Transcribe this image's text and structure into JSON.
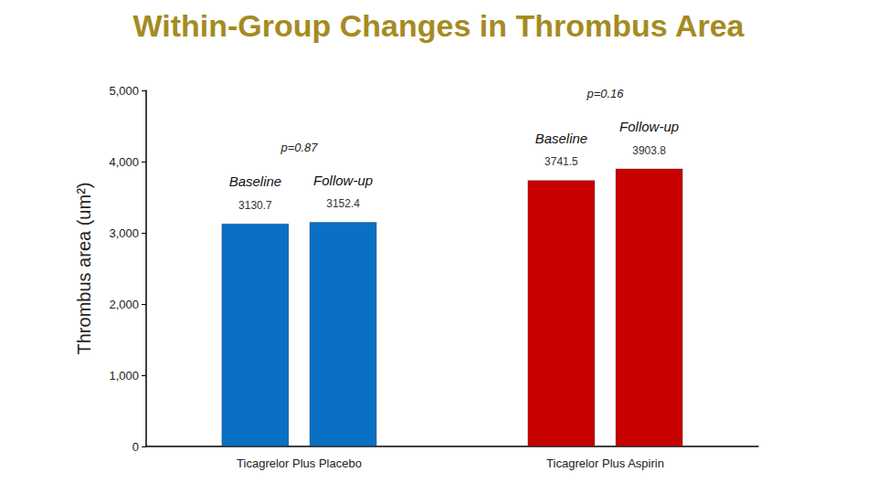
{
  "chart_data": {
    "type": "bar",
    "title": "Within-Group Changes in Thrombus Area",
    "y_label": "Thrombus area (um²)",
    "categories": [
      "Ticagrelor Plus Placebo",
      "Ticagrelor Plus Aspirin"
    ],
    "series": [
      {
        "name": "Baseline",
        "values": [
          3130.7,
          3741.5
        ],
        "colors": [
          "#0a70c4",
          "#c80000"
        ]
      },
      {
        "name": "Follow-up",
        "values": [
          3152.4,
          3903.8
        ],
        "colors": [
          "#0a70c4",
          "#c80000"
        ]
      }
    ],
    "annotations": [
      "p=0.87",
      "p=0.16"
    ],
    "ylim": [
      0,
      5000
    ],
    "yticks": [
      0,
      1000,
      2000,
      3000,
      4000,
      5000
    ],
    "grid": false,
    "data_labels": true
  }
}
